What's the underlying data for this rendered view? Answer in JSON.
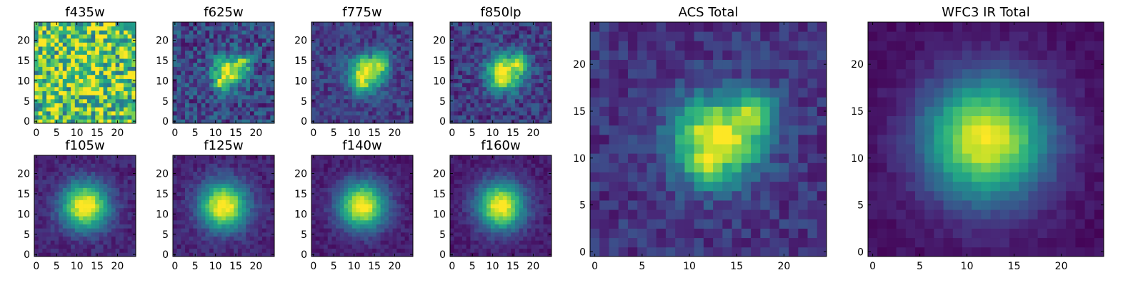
{
  "chart_data": {
    "type": "heatmap",
    "colormap": "viridis",
    "panels": [
      {
        "title": "f435w",
        "x_ticks": [
          0,
          5,
          10,
          15,
          20
        ],
        "y_ticks": [
          0,
          5,
          10,
          15,
          20
        ],
        "xlim": [
          -0.5,
          24.5
        ],
        "ylim": [
          -0.5,
          24.5
        ],
        "profile": {
          "peak": [
            13,
            12
          ],
          "sigma": 3.5,
          "amplitude": 0.15,
          "floor": 0.72,
          "noise": 0.38
        }
      },
      {
        "title": "f625w",
        "x_ticks": [
          0,
          5,
          10,
          15,
          20
        ],
        "y_ticks": [
          0,
          5,
          10,
          15,
          20
        ],
        "xlim": [
          -0.5,
          24.5
        ],
        "ylim": [
          -0.5,
          24.5
        ],
        "profile": {
          "peak": [
            13,
            12
          ],
          "sigma": 2.6,
          "amplitude": 0.8,
          "floor": 0.22,
          "noise": 0.18,
          "lshape": true
        }
      },
      {
        "title": "f775w",
        "x_ticks": [
          0,
          5,
          10,
          15,
          20
        ],
        "y_ticks": [
          0,
          5,
          10,
          15,
          20
        ],
        "xlim": [
          -0.5,
          24.5
        ],
        "ylim": [
          -0.5,
          24.5
        ],
        "profile": {
          "peak": [
            13,
            12
          ],
          "sigma": 3.0,
          "amplitude": 0.85,
          "floor": 0.18,
          "noise": 0.12,
          "lshape": true
        }
      },
      {
        "title": "f850lp",
        "x_ticks": [
          0,
          5,
          10,
          15,
          20
        ],
        "y_ticks": [
          0,
          5,
          10,
          15,
          20
        ],
        "xlim": [
          -0.5,
          24.5
        ],
        "ylim": [
          -0.5,
          24.5
        ],
        "profile": {
          "peak": [
            13,
            12
          ],
          "sigma": 3.0,
          "amplitude": 0.85,
          "floor": 0.18,
          "noise": 0.14,
          "lshape": true
        }
      },
      {
        "title": "f105w",
        "x_ticks": [
          0,
          5,
          10,
          15,
          20
        ],
        "y_ticks": [
          0,
          5,
          10,
          15,
          20
        ],
        "xlim": [
          -0.5,
          24.5
        ],
        "ylim": [
          -0.5,
          24.5
        ],
        "profile": {
          "peak": [
            12,
            12
          ],
          "sigma": 4.0,
          "amplitude": 0.95,
          "floor": 0.1,
          "noise": 0.07
        }
      },
      {
        "title": "f125w",
        "x_ticks": [
          0,
          5,
          10,
          15,
          20
        ],
        "y_ticks": [
          0,
          5,
          10,
          15,
          20
        ],
        "xlim": [
          -0.5,
          24.5
        ],
        "ylim": [
          -0.5,
          24.5
        ],
        "profile": {
          "peak": [
            12,
            12
          ],
          "sigma": 4.0,
          "amplitude": 0.95,
          "floor": 0.1,
          "noise": 0.07
        }
      },
      {
        "title": "f140w",
        "x_ticks": [
          0,
          5,
          10,
          15,
          20
        ],
        "y_ticks": [
          0,
          5,
          10,
          15,
          20
        ],
        "xlim": [
          -0.5,
          24.5
        ],
        "ylim": [
          -0.5,
          24.5
        ],
        "profile": {
          "peak": [
            12,
            12
          ],
          "sigma": 4.0,
          "amplitude": 0.95,
          "floor": 0.08,
          "noise": 0.06
        }
      },
      {
        "title": "f160w",
        "x_ticks": [
          0,
          5,
          10,
          15,
          20
        ],
        "y_ticks": [
          0,
          5,
          10,
          15,
          20
        ],
        "xlim": [
          -0.5,
          24.5
        ],
        "ylim": [
          -0.5,
          24.5
        ],
        "profile": {
          "peak": [
            12,
            12
          ],
          "sigma": 4.0,
          "amplitude": 0.95,
          "floor": 0.08,
          "noise": 0.06
        }
      },
      {
        "title": "ACS Total",
        "x_ticks": [
          0,
          5,
          10,
          15,
          20
        ],
        "y_ticks": [
          0,
          5,
          10,
          15,
          20
        ],
        "xlim": [
          -0.5,
          24.5
        ],
        "ylim": [
          -0.5,
          24.5
        ],
        "profile": {
          "peak": [
            13,
            12
          ],
          "sigma": 3.2,
          "amplitude": 0.9,
          "floor": 0.15,
          "noise": 0.1,
          "lshape": true
        }
      },
      {
        "title": "WFC3 IR Total",
        "x_ticks": [
          0,
          5,
          10,
          15,
          20
        ],
        "y_ticks": [
          0,
          5,
          10,
          15,
          20
        ],
        "xlim": [
          -0.5,
          24.5
        ],
        "ylim": [
          -0.5,
          24.5
        ],
        "profile": {
          "peak": [
            12,
            12
          ],
          "sigma": 4.5,
          "amplitude": 0.95,
          "floor": 0.04,
          "noise": 0.04
        }
      }
    ]
  }
}
